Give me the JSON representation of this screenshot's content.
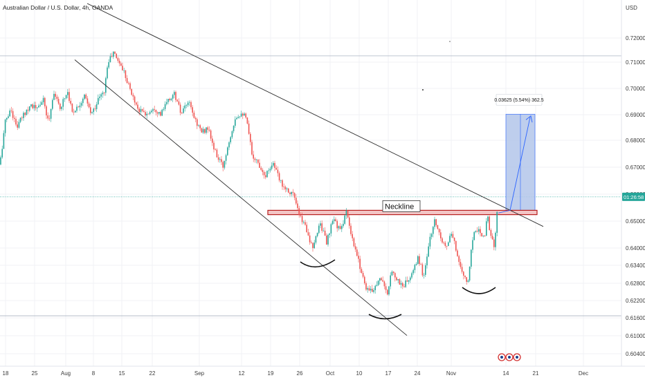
{
  "title": "Australian Dollar / U.S. Dollar, 4h, OANDA",
  "currency": "USD",
  "colors": {
    "up": "#26a69a",
    "down": "#ef5350",
    "trendline": "#2a2a2a",
    "neckline_border": "#b71c1c",
    "neckline_fill": "#f3c6c6",
    "target_fill": "#b3c6ea",
    "target_line": "#2962ff",
    "price_line": "#26a69a",
    "grid": "#f0f2f5",
    "pane_bg": "#eef0f3"
  },
  "chart_data": {
    "type": "candlestick",
    "x_axis_labels": [
      "18",
      "25",
      "Aug",
      "8",
      "15",
      "22",
      "Sep",
      "12",
      "19",
      "26",
      "Oct",
      "10",
      "17",
      "24",
      "Nov",
      "14",
      "21",
      "Dec"
    ],
    "y_axis_labels": [
      "0.72000",
      "0.71000",
      "0.70000",
      "0.69000",
      "0.68000",
      "0.67000",
      "0.66000",
      "0.65000",
      "0.64000",
      "0.63400",
      "0.62800",
      "0.62200",
      "0.61600",
      "0.61000",
      "0.60400"
    ],
    "current_price": {
      "value": 0.659,
      "label": "01:26:58"
    },
    "anchors": [
      [
        0,
        0.671
      ],
      [
        8,
        0.688
      ],
      [
        16,
        0.692
      ],
      [
        24,
        0.685
      ],
      [
        34,
        0.69
      ],
      [
        44,
        0.694
      ],
      [
        54,
        0.692
      ],
      [
        62,
        0.696
      ],
      [
        70,
        0.687
      ],
      [
        78,
        0.699
      ],
      [
        86,
        0.692
      ],
      [
        92,
        0.696
      ],
      [
        98,
        0.699
      ],
      [
        104,
        0.691
      ],
      [
        112,
        0.693
      ],
      [
        122,
        0.697
      ],
      [
        132,
        0.69
      ],
      [
        144,
        0.697
      ],
      [
        150,
        0.698
      ],
      [
        156,
        0.71
      ],
      [
        164,
        0.714
      ],
      [
        172,
        0.71
      ],
      [
        180,
        0.706
      ],
      [
        190,
        0.698
      ],
      [
        200,
        0.692
      ],
      [
        212,
        0.69
      ],
      [
        222,
        0.693
      ],
      [
        232,
        0.69
      ],
      [
        242,
        0.695
      ],
      [
        252,
        0.698
      ],
      [
        262,
        0.69
      ],
      [
        272,
        0.695
      ],
      [
        282,
        0.688
      ],
      [
        292,
        0.683
      ],
      [
        300,
        0.685
      ],
      [
        310,
        0.676
      ],
      [
        322,
        0.67
      ],
      [
        332,
        0.681
      ],
      [
        340,
        0.689
      ],
      [
        350,
        0.691
      ],
      [
        356,
        0.688
      ],
      [
        364,
        0.675
      ],
      [
        374,
        0.671
      ],
      [
        384,
        0.667
      ],
      [
        394,
        0.672
      ],
      [
        404,
        0.665
      ],
      [
        414,
        0.662
      ],
      [
        424,
        0.66
      ],
      [
        432,
        0.652
      ],
      [
        442,
        0.648
      ],
      [
        452,
        0.639
      ],
      [
        462,
        0.65
      ],
      [
        472,
        0.642
      ],
      [
        482,
        0.651
      ],
      [
        492,
        0.646
      ],
      [
        500,
        0.654
      ],
      [
        506,
        0.646
      ],
      [
        512,
        0.64
      ],
      [
        520,
        0.634
      ],
      [
        528,
        0.627
      ],
      [
        536,
        0.625
      ],
      [
        544,
        0.628
      ],
      [
        552,
        0.63
      ],
      [
        560,
        0.623
      ],
      [
        566,
        0.633
      ],
      [
        574,
        0.629
      ],
      [
        582,
        0.627
      ],
      [
        590,
        0.629
      ],
      [
        598,
        0.632
      ],
      [
        604,
        0.637
      ],
      [
        612,
        0.63
      ],
      [
        620,
        0.642
      ],
      [
        628,
        0.65
      ],
      [
        636,
        0.645
      ],
      [
        644,
        0.64
      ],
      [
        652,
        0.645
      ],
      [
        660,
        0.639
      ],
      [
        668,
        0.631
      ],
      [
        676,
        0.628
      ],
      [
        684,
        0.646
      ],
      [
        692,
        0.647
      ],
      [
        700,
        0.644
      ],
      [
        704,
        0.653
      ],
      [
        710,
        0.643
      ],
      [
        714,
        0.641
      ],
      [
        718,
        0.652
      ],
      [
        720,
        0.659
      ]
    ],
    "neckline": {
      "label": "Neckline",
      "price_top": 0.654,
      "price_bottom": 0.6524
    },
    "measure": {
      "label": "0.03625 (5.54%) 362.5",
      "from": 0.654,
      "to": 0.6902
    },
    "upper_trendline": [
      [
        126,
        0.721
      ],
      [
        785,
        0.648
      ]
    ],
    "lower_trendline": [
      [
        108,
        0.711
      ],
      [
        588,
        0.6101
      ]
    ],
    "horizontal_levels": [
      0.7126,
      0.6167
    ]
  }
}
